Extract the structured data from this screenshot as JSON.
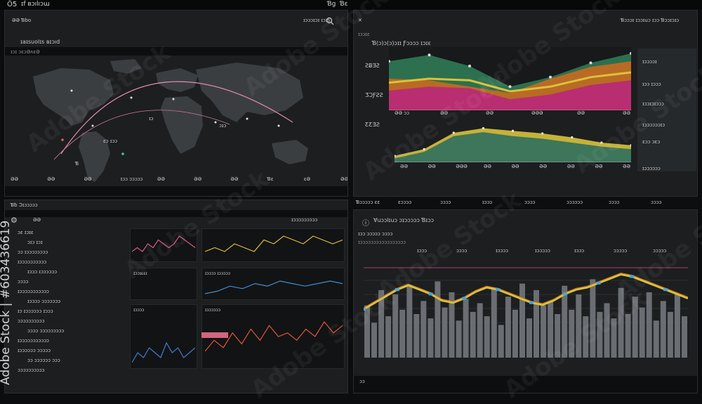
{
  "app": {
    "logo": "Ō5",
    "name": "ɪf ʙɔılıɔɯ",
    "tr1": "Ɓg",
    "tr2": "Ɓɛ"
  },
  "top_left": {
    "header": "ƏƏ Ɓbo",
    "title": "ɪaɪsuolɪs ʙɪɔıd",
    "sublabel": "ɪɔɪ ɔɛɔƏʌɛƏ",
    "search_text": "ɪɔɔɔɪɔɪ ɪɔɪs",
    "map_labels": [
      "ɪɔ",
      "ɪɔɔ",
      "ɪɔɔɛ",
      "ɛɔ ɪɔɔ",
      "Ɓ",
      "ɔɪɔ",
      "ɪ"
    ],
    "xticks": [
      "ƏƏ",
      "ƏƏ",
      "ƏƏ",
      "ɪɔɔ ɔɔɔɔɔ",
      "ƏƏ",
      "ƏƏ",
      "ƏƏ",
      "Ɓɛ",
      "ɛƏ",
      "ƏƏ"
    ],
    "footer": "ɪɔɔɔɔ"
  },
  "top_right": {
    "header": "ɪɔɔɪɛ",
    "tr_text": "Ɓɔɔɔɪ ɪɔɔɪuɔ ɪɔɔ Ɓɔɔɪɔɪɔ",
    "title": "Ɓ(ɔ)ɔ(ɔ)ɔɪɪ Ƒɔɔɔɔ ɪɔɪɛ",
    "y1": "ƧɃƎƧ",
    "y2": "ƷƆƑƧƧ",
    "y3": "ƸƸƎƧ",
    "xticks1": [
      "ƏƏ ɔɔ",
      "ƏƏ",
      "ƏƏ",
      "ƏƏƏ",
      "ƏƏ",
      "ƏƏ"
    ],
    "xticks2": [
      "ƏƏ",
      "ƏƏ",
      "ƏƏƏ",
      "ƏƏ",
      "ƏƏ",
      "ƏƏ",
      "ƏƏ",
      "ƏƏ",
      "ƏƏ"
    ],
    "side": [
      "ɪɔɔɔɔɪ",
      "ɪɔɔ ɪɔɔɔ",
      "ɪɔɔɪɔɪɔɔɔ",
      "ɪɔɔɔɔɔɔɪɔ",
      "ɛɔɔ ɔɛɔ",
      "ɪɔɔɔɔɔɔ"
    ],
    "footer": [
      "Ɓɔɔɔɔɔ ɛɛ",
      "ɛɔɔɔɔ",
      "ɔɔɔɔ",
      "ɪɔɔɔ",
      "ɔɔɔɔ",
      "ɔɔɔɔɔɔ",
      "ɔɔɔɔ",
      "ɔɔɔɔ"
    ]
  },
  "bottom_left": {
    "header": "Ɓƀ Ɔɪɔɔɔɔɔ",
    "title": "ƏƏ",
    "search": "ɪɔɔɔɔɔɔɔɔɔ",
    "list": [
      "ɔɛ ɪɔɪɛ",
      "ɔɪɔ ɪɔɪ",
      "ɔɔ ɪɔɔɔɔɔɔɔɔ",
      "ɪɔɔɔɔɔɔɔɔɔɔ",
      "ɪɔɔɔ ɪɔɔɔɔɔɔ",
      "ɔɔɔɔ",
      "ɪɔɔɔɔɔɔɔɔɔɔɔ",
      "ɪɔɔɔɔ ɔɔɔɔɔɔɔ",
      "ɪɔ ɪɔɔɔɔɔɔ ɪɔɔɔ",
      "ɔɔɔɔɔɔɔɔɔɔ",
      "ɔɔɔɔ ɔɔɔɔɔɔɔɔɔ",
      "ɪɔɔɔɔɔɔɔɔɔɔɔ",
      "ɪɔɔɔɔɔɔ ɔɔɔɔɔ",
      "ɔɔ ɔɔɔɔɔɔ ɔɔɔ",
      "ɔɔɔɔɔɔɔɔɔɔ"
    ],
    "cards": [
      "ɪɔɔɪɛɛɪ",
      "ɪɔɔɔɔɔɔɔɔ",
      "ɪɔɔɔɔ ɪɔɔɔɔɔ",
      "ɪɔɔɔɔ",
      "ɪɔɔɔɔɔɔ",
      "ɪɔɔɔɔɔɔɔ"
    ],
    "values": [
      "ɔɔ",
      "ɔɔɔ",
      "ɔɔɔ",
      "ɔɔɔ"
    ]
  },
  "bottom_right": {
    "title": "Ɐuɔɔlɪuɔ ɔɪɔɔɔɔɔ Ɓɪɔɔ",
    "sub": "ɪɔɔ ɔɔɔɔɔ ɔɔɔɔ",
    "sub2": "ɪɔɔɔɔɔɔɔɔɔɔɔɔɔɔɔɔɔ",
    "legend": [
      "ɪɔɔɔ",
      "ɔɔɔɔ",
      "ɪɔɔɔɔ",
      "ɪɔɔɔɔɔ",
      "ɪɔɔɔ",
      "ɔɔɔɔɔ",
      "ɔɔɔɔɔ"
    ],
    "footer": "ɔɔ"
  },
  "watermark": "Adobe Stock",
  "stock_id": "Adobe Stock | #603436619",
  "colors": {
    "accent_magenta": "#b8287a",
    "accent_green": "#2f7a55",
    "accent_yellow": "#d9c23b",
    "accent_orange": "#c96a1e",
    "bars": "#6a6e72"
  },
  "chart_data": [
    {
      "type": "area",
      "series": [
        {
          "name": "",
          "values": [
            62,
            70,
            56,
            30,
            42,
            60,
            72
          ]
        },
        {
          "name": "",
          "values": [
            40,
            38,
            30,
            22,
            40,
            55,
            62
          ]
        },
        {
          "name": "",
          "values": [
            25,
            30,
            28,
            14,
            20,
            32,
            38
          ]
        }
      ]
    },
    {
      "type": "area",
      "series": [
        {
          "name": "",
          "values": [
            10,
            20,
            45,
            52,
            48,
            44,
            38,
            30,
            26
          ]
        },
        {
          "name": "",
          "values": [
            6,
            16,
            40,
            46,
            40,
            36,
            30,
            24,
            20
          ]
        }
      ]
    },
    {
      "type": "bar",
      "values": [
        48,
        32,
        62,
        38,
        58,
        44,
        66,
        40,
        52,
        36,
        70,
        46,
        60,
        34,
        54,
        42,
        50,
        38,
        64,
        30,
        56,
        44,
        68,
        36,
        62,
        48,
        52,
        40,
        66,
        44,
        58,
        38,
        72,
        42,
        50,
        36,
        64,
        40,
        56,
        46,
        60,
        34,
        52,
        42,
        58,
        38
      ]
    },
    {
      "type": "line",
      "values": [
        38,
        44,
        50,
        56,
        60,
        56,
        52,
        46,
        44,
        48,
        54,
        58,
        56,
        52,
        48,
        44,
        42,
        46,
        52,
        56,
        58,
        62,
        66,
        70,
        68,
        64,
        60,
        56,
        52,
        48
      ]
    }
  ]
}
